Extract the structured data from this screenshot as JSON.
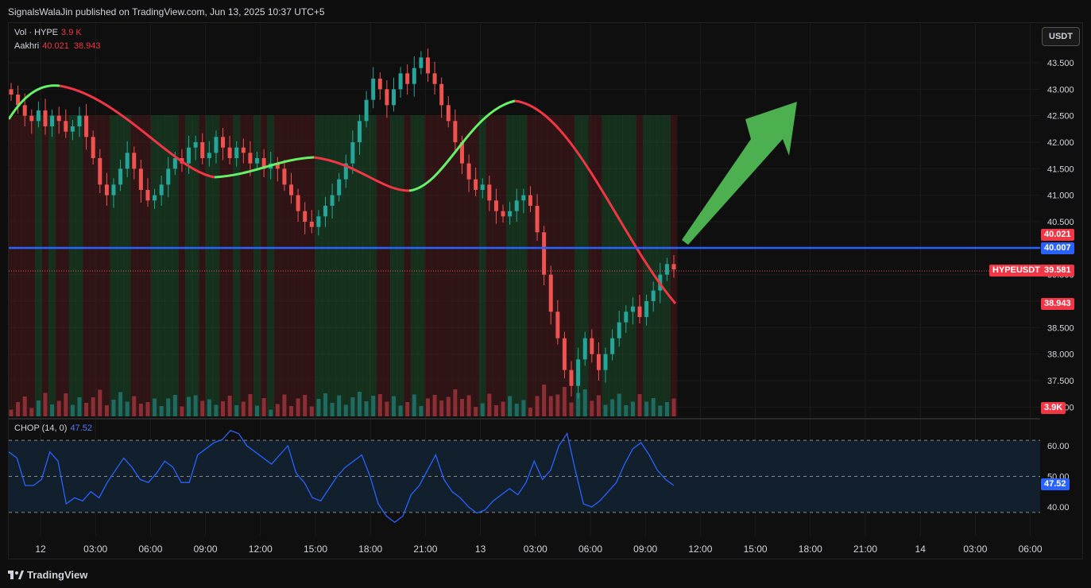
{
  "header": {
    "publish_text": "SignalsWalaJin published on TradingView.com, Jun 13, 2025 10:37 UTC+5"
  },
  "currency_button": "USDT",
  "legend": {
    "vol_label": "Vol · HYPE",
    "vol_value": "3.9 K",
    "ind_label": "Aakhri",
    "ind_v1": "40.021",
    "ind_v2": "38.943",
    "chop_label": "CHOP (14, 0)",
    "chop_value": "47.52"
  },
  "price_tags": {
    "upper": "40.021",
    "hline": "40.007",
    "symbol": "HYPEUSDT",
    "last": "39.581",
    "lower": "38.943",
    "vol": "3.9K",
    "chop": "47.52"
  },
  "footer": {
    "brand": "TradingView"
  },
  "colors": {
    "up": "#26a69a",
    "down": "#ef5350",
    "hline": "#2962ff",
    "arrow": "#4caf50",
    "chop": "#2962ff"
  },
  "chart_data": {
    "type": "candlestick",
    "symbol": "HYPEUSDT",
    "y_ticks": [
      "43.500",
      "43.000",
      "42.500",
      "42.000",
      "41.500",
      "41.000",
      "40.500",
      "40.000",
      "39.500",
      "39.000",
      "38.500",
      "38.000",
      "37.500",
      "37.000"
    ],
    "ylim": [
      36.5,
      44.0
    ],
    "x_ticks": [
      "12",
      "03:00",
      "06:00",
      "09:00",
      "12:00",
      "15:00",
      "18:00",
      "21:00",
      "13",
      "03:00",
      "06:00",
      "09:00",
      "12:00",
      "15:00",
      "18:00",
      "21:00",
      "14",
      "03:00",
      "06:00"
    ],
    "horizontal_line": 40.007,
    "last_price": 39.581,
    "candles_close": [
      42.9,
      42.7,
      42.5,
      42.4,
      42.6,
      42.3,
      42.5,
      42.4,
      42.2,
      42.3,
      42.5,
      42.1,
      41.7,
      41.2,
      41.0,
      41.2,
      41.5,
      41.8,
      41.5,
      41.1,
      40.9,
      41.0,
      41.2,
      41.5,
      41.7,
      41.6,
      41.9,
      42.0,
      41.7,
      41.8,
      42.1,
      41.9,
      41.7,
      41.9,
      41.8,
      41.6,
      41.7,
      41.5,
      41.6,
      41.5,
      41.2,
      41.0,
      40.7,
      40.5,
      40.4,
      40.6,
      40.8,
      41.0,
      41.3,
      41.6,
      42.0,
      42.4,
      42.8,
      43.2,
      43.0,
      42.7,
      43.0,
      43.3,
      43.1,
      43.4,
      43.6,
      43.3,
      43.1,
      42.7,
      42.4,
      42.0,
      41.6,
      41.3,
      41.1,
      41.2,
      40.9,
      40.7,
      40.6,
      40.7,
      40.9,
      41.0,
      40.8,
      40.3,
      39.5,
      38.8,
      38.3,
      37.7,
      37.4,
      37.9,
      38.3,
      38.0,
      37.7,
      38.0,
      38.3,
      38.6,
      38.8,
      38.9,
      38.7,
      39.0,
      39.2,
      39.5,
      39.7,
      39.6
    ],
    "ind_upper": 40.021,
    "ind_lower": 38.943,
    "chop": {
      "label": "CHOP (14, 0)",
      "last": 47.52,
      "levels": [
        61.8,
        50.0,
        38.2
      ],
      "y_ticks": [
        "60.00",
        "50.00",
        "40.00"
      ],
      "values": [
        58,
        56,
        47,
        47,
        49,
        58,
        55,
        41,
        43,
        42,
        45,
        43,
        48,
        52,
        56,
        53,
        49,
        48,
        51,
        55,
        53,
        48,
        48,
        57,
        59,
        61,
        62,
        65,
        64,
        60,
        58,
        56,
        54,
        57,
        60,
        51,
        48,
        43,
        42,
        46,
        50,
        53,
        55,
        57,
        50,
        41,
        37,
        35,
        37,
        44,
        47,
        52,
        57,
        49,
        45,
        43,
        40,
        38,
        39,
        42,
        44,
        46,
        44,
        48,
        55,
        49,
        52,
        60,
        64,
        52,
        41,
        40,
        42,
        45,
        48,
        54,
        59,
        61,
        57,
        52,
        49,
        47
      ]
    }
  }
}
